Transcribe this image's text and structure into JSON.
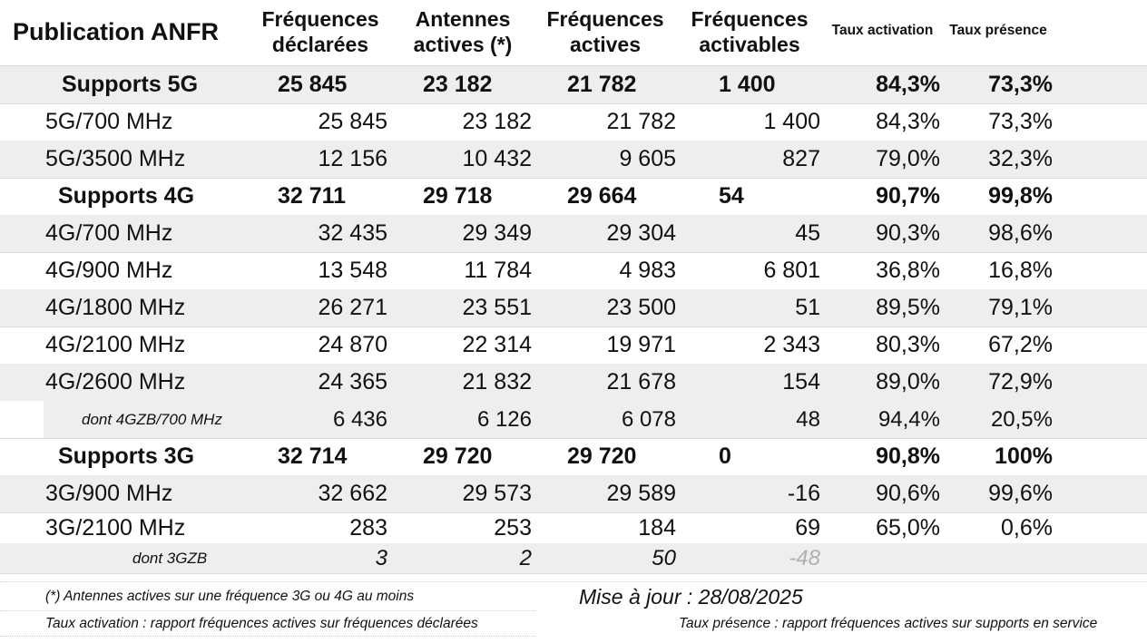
{
  "header": {
    "title": "Publication ANFR",
    "col1": [
      "Fréquences",
      "déclarées"
    ],
    "col2": [
      "Antennes",
      "actives (*)"
    ],
    "col3": [
      "Fréquences",
      "actives"
    ],
    "col4": [
      "Fréquences",
      "activables"
    ],
    "col5": "Taux activation",
    "col6": "Taux présence"
  },
  "rows": [
    {
      "label": "Supports 5G",
      "values": [
        "25 845",
        "23 182",
        "21 782",
        "1 400",
        "84,3%",
        "73,3%"
      ]
    },
    {
      "label": "5G/700 MHz",
      "values": [
        "25 845",
        "23 182",
        "21 782",
        "1 400",
        "84,3%",
        "73,3%"
      ]
    },
    {
      "label": "5G/3500 MHz",
      "values": [
        "12 156",
        "10 432",
        "9 605",
        "827",
        "79,0%",
        "32,3%"
      ]
    },
    {
      "label": "Supports 4G",
      "values": [
        "32 711",
        "29 718",
        "29 664",
        "54",
        "90,7%",
        "99,8%"
      ]
    },
    {
      "label": "4G/700 MHz",
      "values": [
        "32 435",
        "29 349",
        "29 304",
        "45",
        "90,3%",
        "98,6%"
      ]
    },
    {
      "label": "4G/900 MHz",
      "values": [
        "13 548",
        "11 784",
        "4 983",
        "6 801",
        "36,8%",
        "16,8%"
      ]
    },
    {
      "label": "4G/1800 MHz",
      "values": [
        "26 271",
        "23 551",
        "23 500",
        "51",
        "89,5%",
        "79,1%"
      ]
    },
    {
      "label": "4G/2100 MHz",
      "values": [
        "24 870",
        "22 314",
        "19 971",
        "2 343",
        "80,3%",
        "67,2%"
      ]
    },
    {
      "label": "4G/2600 MHz",
      "values": [
        "24 365",
        "21 832",
        "21 678",
        "154",
        "89,0%",
        "72,9%"
      ]
    },
    {
      "label": "dont 4GZB/700 MHz",
      "values": [
        "6 436",
        "6 126",
        "6 078",
        "48",
        "94,4%",
        "20,5%"
      ]
    },
    {
      "label": "Supports 3G",
      "values": [
        "32 714",
        "29 720",
        "29 720",
        "0",
        "90,8%",
        "100%"
      ]
    },
    {
      "label": "3G/900 MHz",
      "values": [
        "32 662",
        "29 573",
        "29 589",
        "-16",
        "90,6%",
        "99,6%"
      ]
    },
    {
      "label": "3G/2100 MHz",
      "values": [
        "283",
        "253",
        "184",
        "69",
        "65,0%",
        "0,6%"
      ]
    },
    {
      "label": "dont 3GZB",
      "values": [
        "3",
        "2",
        "50",
        "-48",
        "",
        ""
      ]
    }
  ],
  "footer": {
    "note_antennes": "(*) Antennes actives sur une fréquence 3G ou 4G au moins",
    "update": "Mise à jour : 28/08/2025",
    "note_activation": "Taux activation : rapport fréquences actives sur fréquences déclarées",
    "note_presence": "Taux présence : rapport fréquences actives sur supports en service"
  }
}
